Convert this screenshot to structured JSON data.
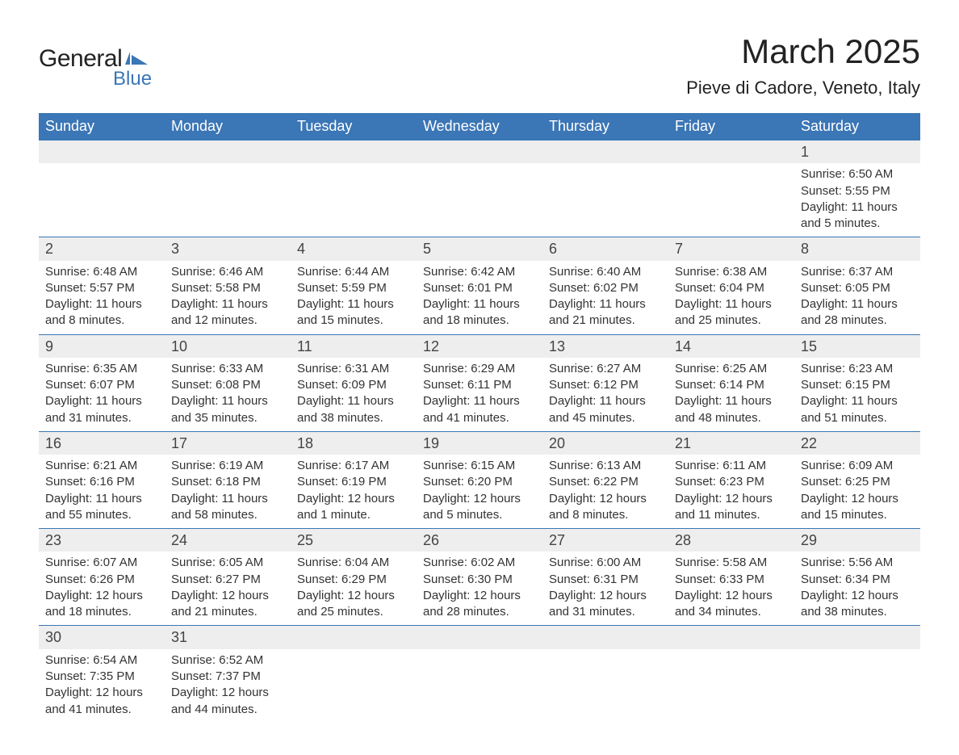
{
  "logo": {
    "text_general": "General",
    "text_blue": "Blue",
    "flag_color": "#3b76b6"
  },
  "title": "March 2025",
  "location": "Pieve di Cadore, Veneto, Italy",
  "colors": {
    "header_bg": "#3b76b6",
    "header_text": "#ffffff",
    "daynum_bg": "#eeeeee",
    "row_border": "#3b76b6",
    "body_text": "#333333",
    "title_text": "#222222"
  },
  "typography": {
    "title_fontsize": 42,
    "location_fontsize": 22,
    "header_fontsize": 18,
    "daynum_fontsize": 18,
    "cell_fontsize": 15
  },
  "days_of_week": [
    "Sunday",
    "Monday",
    "Tuesday",
    "Wednesday",
    "Thursday",
    "Friday",
    "Saturday"
  ],
  "weeks": [
    [
      null,
      null,
      null,
      null,
      null,
      null,
      {
        "n": "1",
        "sunrise": "Sunrise: 6:50 AM",
        "sunset": "Sunset: 5:55 PM",
        "daylight": "Daylight: 11 hours and 5 minutes."
      }
    ],
    [
      {
        "n": "2",
        "sunrise": "Sunrise: 6:48 AM",
        "sunset": "Sunset: 5:57 PM",
        "daylight": "Daylight: 11 hours and 8 minutes."
      },
      {
        "n": "3",
        "sunrise": "Sunrise: 6:46 AM",
        "sunset": "Sunset: 5:58 PM",
        "daylight": "Daylight: 11 hours and 12 minutes."
      },
      {
        "n": "4",
        "sunrise": "Sunrise: 6:44 AM",
        "sunset": "Sunset: 5:59 PM",
        "daylight": "Daylight: 11 hours and 15 minutes."
      },
      {
        "n": "5",
        "sunrise": "Sunrise: 6:42 AM",
        "sunset": "Sunset: 6:01 PM",
        "daylight": "Daylight: 11 hours and 18 minutes."
      },
      {
        "n": "6",
        "sunrise": "Sunrise: 6:40 AM",
        "sunset": "Sunset: 6:02 PM",
        "daylight": "Daylight: 11 hours and 21 minutes."
      },
      {
        "n": "7",
        "sunrise": "Sunrise: 6:38 AM",
        "sunset": "Sunset: 6:04 PM",
        "daylight": "Daylight: 11 hours and 25 minutes."
      },
      {
        "n": "8",
        "sunrise": "Sunrise: 6:37 AM",
        "sunset": "Sunset: 6:05 PM",
        "daylight": "Daylight: 11 hours and 28 minutes."
      }
    ],
    [
      {
        "n": "9",
        "sunrise": "Sunrise: 6:35 AM",
        "sunset": "Sunset: 6:07 PM",
        "daylight": "Daylight: 11 hours and 31 minutes."
      },
      {
        "n": "10",
        "sunrise": "Sunrise: 6:33 AM",
        "sunset": "Sunset: 6:08 PM",
        "daylight": "Daylight: 11 hours and 35 minutes."
      },
      {
        "n": "11",
        "sunrise": "Sunrise: 6:31 AM",
        "sunset": "Sunset: 6:09 PM",
        "daylight": "Daylight: 11 hours and 38 minutes."
      },
      {
        "n": "12",
        "sunrise": "Sunrise: 6:29 AM",
        "sunset": "Sunset: 6:11 PM",
        "daylight": "Daylight: 11 hours and 41 minutes."
      },
      {
        "n": "13",
        "sunrise": "Sunrise: 6:27 AM",
        "sunset": "Sunset: 6:12 PM",
        "daylight": "Daylight: 11 hours and 45 minutes."
      },
      {
        "n": "14",
        "sunrise": "Sunrise: 6:25 AM",
        "sunset": "Sunset: 6:14 PM",
        "daylight": "Daylight: 11 hours and 48 minutes."
      },
      {
        "n": "15",
        "sunrise": "Sunrise: 6:23 AM",
        "sunset": "Sunset: 6:15 PM",
        "daylight": "Daylight: 11 hours and 51 minutes."
      }
    ],
    [
      {
        "n": "16",
        "sunrise": "Sunrise: 6:21 AM",
        "sunset": "Sunset: 6:16 PM",
        "daylight": "Daylight: 11 hours and 55 minutes."
      },
      {
        "n": "17",
        "sunrise": "Sunrise: 6:19 AM",
        "sunset": "Sunset: 6:18 PM",
        "daylight": "Daylight: 11 hours and 58 minutes."
      },
      {
        "n": "18",
        "sunrise": "Sunrise: 6:17 AM",
        "sunset": "Sunset: 6:19 PM",
        "daylight": "Daylight: 12 hours and 1 minute."
      },
      {
        "n": "19",
        "sunrise": "Sunrise: 6:15 AM",
        "sunset": "Sunset: 6:20 PM",
        "daylight": "Daylight: 12 hours and 5 minutes."
      },
      {
        "n": "20",
        "sunrise": "Sunrise: 6:13 AM",
        "sunset": "Sunset: 6:22 PM",
        "daylight": "Daylight: 12 hours and 8 minutes."
      },
      {
        "n": "21",
        "sunrise": "Sunrise: 6:11 AM",
        "sunset": "Sunset: 6:23 PM",
        "daylight": "Daylight: 12 hours and 11 minutes."
      },
      {
        "n": "22",
        "sunrise": "Sunrise: 6:09 AM",
        "sunset": "Sunset: 6:25 PM",
        "daylight": "Daylight: 12 hours and 15 minutes."
      }
    ],
    [
      {
        "n": "23",
        "sunrise": "Sunrise: 6:07 AM",
        "sunset": "Sunset: 6:26 PM",
        "daylight": "Daylight: 12 hours and 18 minutes."
      },
      {
        "n": "24",
        "sunrise": "Sunrise: 6:05 AM",
        "sunset": "Sunset: 6:27 PM",
        "daylight": "Daylight: 12 hours and 21 minutes."
      },
      {
        "n": "25",
        "sunrise": "Sunrise: 6:04 AM",
        "sunset": "Sunset: 6:29 PM",
        "daylight": "Daylight: 12 hours and 25 minutes."
      },
      {
        "n": "26",
        "sunrise": "Sunrise: 6:02 AM",
        "sunset": "Sunset: 6:30 PM",
        "daylight": "Daylight: 12 hours and 28 minutes."
      },
      {
        "n": "27",
        "sunrise": "Sunrise: 6:00 AM",
        "sunset": "Sunset: 6:31 PM",
        "daylight": "Daylight: 12 hours and 31 minutes."
      },
      {
        "n": "28",
        "sunrise": "Sunrise: 5:58 AM",
        "sunset": "Sunset: 6:33 PM",
        "daylight": "Daylight: 12 hours and 34 minutes."
      },
      {
        "n": "29",
        "sunrise": "Sunrise: 5:56 AM",
        "sunset": "Sunset: 6:34 PM",
        "daylight": "Daylight: 12 hours and 38 minutes."
      }
    ],
    [
      {
        "n": "30",
        "sunrise": "Sunrise: 6:54 AM",
        "sunset": "Sunset: 7:35 PM",
        "daylight": "Daylight: 12 hours and 41 minutes."
      },
      {
        "n": "31",
        "sunrise": "Sunrise: 6:52 AM",
        "sunset": "Sunset: 7:37 PM",
        "daylight": "Daylight: 12 hours and 44 minutes."
      },
      null,
      null,
      null,
      null,
      null
    ]
  ]
}
